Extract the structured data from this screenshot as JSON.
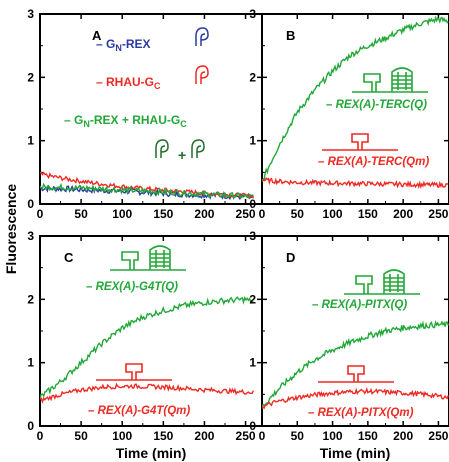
{
  "figure": {
    "ylabel": "Fluorescence",
    "xlabel": "Time (min)"
  },
  "colors": {
    "blue": "#2b3aa0",
    "red": "#ee2a24",
    "green": "#22a838",
    "darkgreen": "#1f6e2c",
    "axis": "#000000"
  },
  "chart_data": [
    {
      "panel": "A",
      "type": "line",
      "xlim": [
        0,
        270
      ],
      "ylim": [
        0,
        3
      ],
      "xticks": [
        "0",
        "50",
        "100",
        "150",
        "200",
        "250"
      ],
      "yticks": [
        "0",
        "1",
        "2",
        "3"
      ],
      "legend": [
        {
          "prefix": "G",
          "sub": "N",
          "suffix": "-REX",
          "color": "blue",
          "icon": "gn-rex-icon"
        },
        {
          "prefix": "RHAU-G",
          "sub": "C",
          "suffix": "",
          "color": "red",
          "icon": "rhau-gc-icon"
        },
        {
          "prefix": "G",
          "sub": "N",
          "suffix": "-REX + RHAU-G",
          "sub2": "C",
          "color": "green",
          "icon": "combined-icon"
        }
      ],
      "series": [
        {
          "name": "GN-REX",
          "color": "blue",
          "x": [
            0,
            30,
            60,
            90,
            120,
            150,
            180,
            210,
            240,
            260
          ],
          "y": [
            0.25,
            0.24,
            0.22,
            0.21,
            0.19,
            0.17,
            0.15,
            0.14,
            0.12,
            0.11
          ]
        },
        {
          "name": "RHAU-GC",
          "color": "red",
          "x": [
            0,
            30,
            60,
            90,
            120,
            150,
            180,
            210,
            240,
            260
          ],
          "y": [
            0.47,
            0.4,
            0.34,
            0.29,
            0.25,
            0.22,
            0.19,
            0.16,
            0.14,
            0.12
          ]
        },
        {
          "name": "GN-REX + RHAU-GC",
          "color": "green",
          "x": [
            0,
            30,
            60,
            90,
            120,
            150,
            180,
            210,
            240,
            260
          ],
          "y": [
            0.27,
            0.26,
            0.25,
            0.23,
            0.21,
            0.19,
            0.17,
            0.15,
            0.13,
            0.11
          ]
        }
      ]
    },
    {
      "panel": "B",
      "type": "line",
      "xlim": [
        0,
        265
      ],
      "ylim": [
        0,
        3
      ],
      "xticks": [
        "0",
        "50",
        "100",
        "150",
        "200",
        "250"
      ],
      "yticks": [
        "0",
        "1",
        "2",
        "3"
      ],
      "labels": [
        {
          "text": "REX(A)-TERC(Q)",
          "color": "green",
          "icon": "quadruplex-icon"
        },
        {
          "text": "REX(A)-TERC(Qm)",
          "color": "red",
          "icon": "hairpin-icon"
        }
      ],
      "series": [
        {
          "name": "REX(A)-TERC(Q)",
          "color": "green",
          "x": [
            0,
            10,
            25,
            50,
            75,
            100,
            125,
            150,
            175,
            200,
            225,
            250,
            265
          ],
          "y": [
            0.35,
            0.6,
            0.95,
            1.45,
            1.8,
            2.1,
            2.35,
            2.5,
            2.62,
            2.75,
            2.85,
            2.92,
            2.88
          ]
        },
        {
          "name": "REX(A)-TERC(Qm)",
          "color": "red",
          "x": [
            0,
            20,
            50,
            100,
            150,
            200,
            250,
            265
          ],
          "y": [
            0.38,
            0.36,
            0.34,
            0.33,
            0.32,
            0.31,
            0.3,
            0.3
          ]
        }
      ]
    },
    {
      "panel": "C",
      "type": "line",
      "xlim": [
        0,
        270
      ],
      "ylim": [
        0,
        3
      ],
      "xticks": [
        "0",
        "50",
        "100",
        "150",
        "200",
        "250"
      ],
      "yticks": [
        "0",
        "1",
        "2",
        "3"
      ],
      "labels": [
        {
          "text": "REX(A)-G4T(Q)",
          "color": "green",
          "icon": "quadruplex-icon"
        },
        {
          "text": "REX(A)-G4T(Qm)",
          "color": "red",
          "icon": "hairpin-icon"
        }
      ],
      "series": [
        {
          "name": "REX(A)-G4T(Q)",
          "color": "green",
          "x": [
            0,
            10,
            25,
            50,
            75,
            100,
            125,
            150,
            175,
            200,
            225,
            250,
            260
          ],
          "y": [
            0.45,
            0.55,
            0.7,
            1.0,
            1.3,
            1.55,
            1.72,
            1.82,
            1.9,
            1.95,
            1.98,
            2.0,
            1.95
          ]
        },
        {
          "name": "REX(A)-G4T(Qm)",
          "color": "red",
          "x": [
            0,
            20,
            50,
            80,
            110,
            140,
            170,
            200,
            230,
            260
          ],
          "y": [
            0.4,
            0.48,
            0.57,
            0.62,
            0.63,
            0.62,
            0.6,
            0.57,
            0.55,
            0.53
          ]
        }
      ]
    },
    {
      "panel": "D",
      "type": "line",
      "xlim": [
        0,
        265
      ],
      "ylim": [
        0,
        3
      ],
      "xticks": [
        "0",
        "50",
        "100",
        "150",
        "200",
        "250"
      ],
      "yticks": [
        "0",
        "1",
        "2",
        "3"
      ],
      "labels": [
        {
          "text": "REX(A)-PITX(Q)",
          "color": "green",
          "icon": "quadruplex-icon"
        },
        {
          "text": "REX(A)-PITX(Qm)",
          "color": "red",
          "icon": "hairpin-icon"
        }
      ],
      "series": [
        {
          "name": "REX(A)-PITX(Q)",
          "color": "green",
          "x": [
            0,
            10,
            25,
            50,
            75,
            100,
            125,
            150,
            175,
            200,
            225,
            250,
            265
          ],
          "y": [
            0.3,
            0.42,
            0.6,
            0.85,
            1.05,
            1.2,
            1.32,
            1.42,
            1.5,
            1.55,
            1.58,
            1.6,
            1.6
          ]
        },
        {
          "name": "REX(A)-PITX(Qm)",
          "color": "red",
          "x": [
            0,
            20,
            50,
            80,
            110,
            140,
            170,
            200,
            230,
            265
          ],
          "y": [
            0.3,
            0.38,
            0.45,
            0.5,
            0.53,
            0.55,
            0.54,
            0.52,
            0.5,
            0.45
          ]
        }
      ]
    }
  ]
}
